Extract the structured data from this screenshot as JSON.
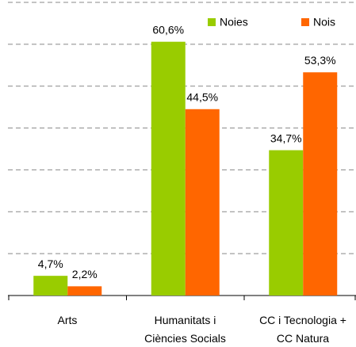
{
  "chart_data": {
    "type": "bar",
    "categories": [
      "Arts",
      "Humanitats i\nCiències Socials",
      "CC i Tecnologia +\nCC Natura"
    ],
    "series": [
      {
        "name": "Noies",
        "color": "#99cc00",
        "values": [
          4.7,
          60.6,
          34.7
        ],
        "value_labels": [
          "4,7%",
          "60,6%",
          "34,7%"
        ]
      },
      {
        "name": "Nois",
        "color": "#ff6600",
        "values": [
          2.2,
          44.5,
          53.3
        ],
        "value_labels": [
          "2,2%",
          "44,5%",
          "53,3%"
        ]
      }
    ],
    "ylim": [
      0,
      70
    ],
    "yticks": [
      10,
      20,
      30,
      40,
      50,
      60
    ],
    "grid": true,
    "legend": "top-right"
  }
}
